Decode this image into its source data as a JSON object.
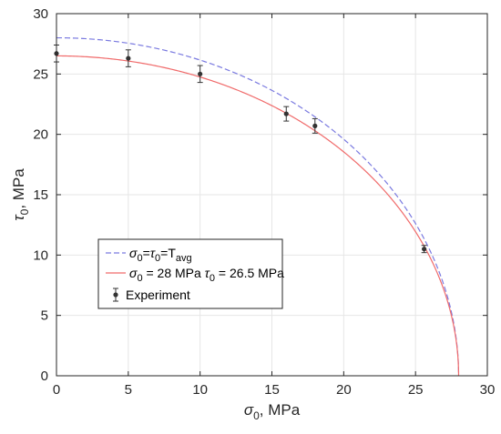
{
  "colors": {
    "axis": "#262626",
    "grid": "#e6e6e6",
    "theoretical": "#f06a6a",
    "average": "#7a7ae0",
    "experiment": "#333333"
  },
  "chart_data": {
    "type": "line",
    "xlabel": {
      "symbol": "σ",
      "sub": "0",
      "unit": ", MPa"
    },
    "ylabel": {
      "symbol": "τ",
      "sub": "0",
      "unit": ", MPa"
    },
    "xlim": [
      0,
      30
    ],
    "ylim": [
      0,
      30
    ],
    "xticks": [
      0,
      5,
      10,
      15,
      20,
      25,
      30
    ],
    "yticks": [
      0,
      5,
      10,
      15,
      20,
      25,
      30
    ],
    "grid": true,
    "legend_position": "lower-left",
    "series": [
      {
        "key": "average",
        "style": "dashed",
        "color": "#7a7ae0",
        "sigma0": 28,
        "tau0": 28,
        "legend_parts": [
          {
            "t": "σ",
            "italic": true
          },
          {
            "t": "0",
            "sub": true
          },
          {
            "t": "="
          },
          {
            "t": "τ",
            "italic": true
          },
          {
            "t": "0",
            "sub": true
          },
          {
            "t": "=T"
          },
          {
            "t": "avg",
            "sub": true
          }
        ]
      },
      {
        "key": "theoretical",
        "style": "solid",
        "color": "#f06a6a",
        "sigma0": 28,
        "tau0": 26.5,
        "legend_parts": [
          {
            "t": "σ",
            "italic": true
          },
          {
            "t": "0",
            "sub": true
          },
          {
            "t": " = 28 MPa "
          },
          {
            "t": "τ",
            "italic": true
          },
          {
            "t": "0",
            "sub": true
          },
          {
            "t": " = 26.5 MPa"
          }
        ]
      }
    ],
    "experiment": {
      "name": "Experiment",
      "points": [
        {
          "x": 0,
          "y": 26.7,
          "err": 0.7
        },
        {
          "x": 5,
          "y": 26.3,
          "err": 0.7
        },
        {
          "x": 10,
          "y": 25.0,
          "err": 0.7
        },
        {
          "x": 16,
          "y": 21.7,
          "err": 0.6
        },
        {
          "x": 18,
          "y": 20.7,
          "err": 0.6
        },
        {
          "x": 25.6,
          "y": 10.5,
          "err": 0.3
        }
      ]
    }
  }
}
